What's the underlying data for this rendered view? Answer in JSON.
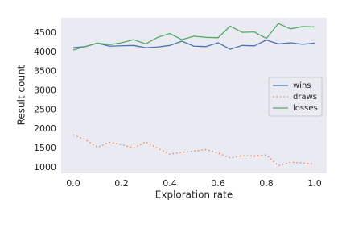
{
  "chart_data": {
    "type": "line",
    "x_label": "Exploration rate",
    "y_label": "Result count",
    "x": [
      0,
      0.05,
      0.1,
      0.15,
      0.2,
      0.25,
      0.3,
      0.35,
      0.4,
      0.45,
      0.5,
      0.55,
      0.6,
      0.65,
      0.7,
      0.75,
      0.8,
      0.85,
      0.9,
      0.95,
      1.0
    ],
    "series": [
      {
        "name": "wins",
        "color": "#4c72b0",
        "style": "solid",
        "values": [
          4120,
          4150,
          4240,
          4160,
          4170,
          4180,
          4120,
          4140,
          4180,
          4290,
          4160,
          4150,
          4250,
          4080,
          4180,
          4170,
          4320,
          4220,
          4250,
          4210,
          4240
        ]
      },
      {
        "name": "draws",
        "color": "#dd8452",
        "style": "dotted",
        "values": [
          1850,
          1730,
          1530,
          1660,
          1600,
          1510,
          1670,
          1500,
          1350,
          1400,
          1430,
          1470,
          1380,
          1250,
          1310,
          1300,
          1330,
          1050,
          1140,
          1120,
          1090
        ]
      },
      {
        "name": "losses",
        "color": "#55a868",
        "style": "solid",
        "values": [
          4060,
          4150,
          4240,
          4200,
          4250,
          4330,
          4220,
          4390,
          4490,
          4330,
          4420,
          4390,
          4380,
          4680,
          4520,
          4530,
          4360,
          4750,
          4610,
          4670,
          4660
        ]
      }
    ],
    "xlim": [
      -0.05,
      1.05
    ],
    "xticks": [
      {
        "value": 0,
        "label": "0.0"
      },
      {
        "value": 0.2,
        "label": "0.2"
      },
      {
        "value": 0.4,
        "label": "0.4"
      },
      {
        "value": 0.6,
        "label": "0.6"
      },
      {
        "value": 0.8,
        "label": "0.8"
      },
      {
        "value": 1,
        "label": "1.0"
      }
    ],
    "ylim": [
      850,
      4900
    ],
    "yticks": [
      1000,
      1500,
      2000,
      2500,
      3000,
      3500,
      4000,
      4500
    ],
    "grid": false,
    "legend": "right"
  }
}
